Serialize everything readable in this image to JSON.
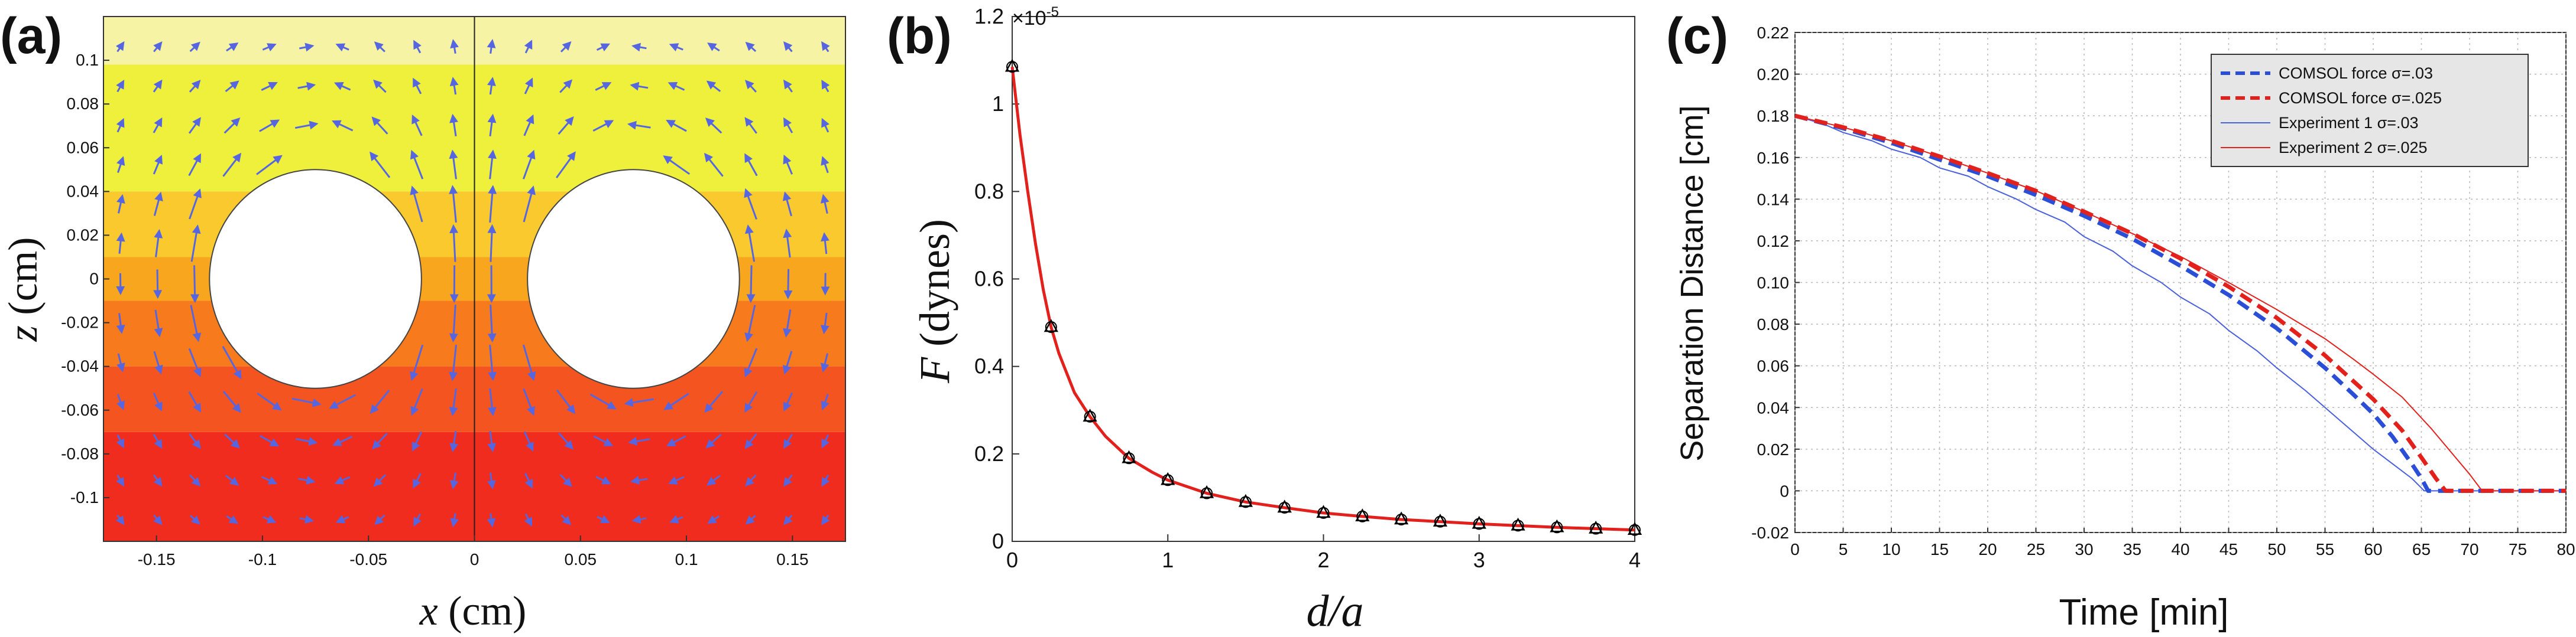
{
  "chart_data": [
    {
      "type": "heatmap",
      "panel_label": "(a)",
      "xlabel_var": "x",
      "xlabel_unit": " (cm)",
      "ylabel_var": "z",
      "ylabel_unit": " (cm)",
      "xlim": [
        -0.175,
        0.175
      ],
      "ylim": [
        -0.12,
        0.12
      ],
      "x_ticks": [
        "-0.15",
        "-0.1",
        "-0.05",
        "0",
        "0.05",
        "0.1",
        "0.15"
      ],
      "x_tick_values": [
        -0.15,
        -0.1,
        -0.05,
        0,
        0.05,
        0.1,
        0.15
      ],
      "y_ticks": [
        "0.1",
        "0.08",
        "0.06",
        "0.04",
        "0.02",
        "0",
        "-0.02",
        "-0.04",
        "-0.06",
        "-0.08",
        "-0.1"
      ],
      "y_tick_values": [
        0.1,
        0.08,
        0.06,
        0.04,
        0.02,
        0,
        -0.02,
        -0.04,
        -0.06,
        -0.08,
        -0.1
      ],
      "particles": [
        {
          "cx": -0.075,
          "cz": 0,
          "r": 0.05
        },
        {
          "cx": 0.075,
          "cz": 0,
          "r": 0.05
        }
      ],
      "color_bands": [
        {
          "z_top": 0.12,
          "z_bottom": 0.098,
          "color": "#f6f3a4"
        },
        {
          "z_top": 0.098,
          "z_bottom": 0.04,
          "color": "#eef03c"
        },
        {
          "z_top": 0.04,
          "z_bottom": 0.01,
          "color": "#f9c92e"
        },
        {
          "z_top": 0.01,
          "z_bottom": -0.01,
          "color": "#f8a61e"
        },
        {
          "z_top": -0.01,
          "z_bottom": -0.04,
          "color": "#f77a1c"
        },
        {
          "z_top": -0.04,
          "z_bottom": -0.07,
          "color": "#f45520"
        },
        {
          "z_top": -0.07,
          "z_bottom": -0.12,
          "color": "#ef2c1e"
        }
      ],
      "arrow_color": "#5566e0",
      "divider_x": 0
    },
    {
      "type": "line",
      "panel_label": "(b)",
      "xlabel": "d/a",
      "ylabel_var": "F",
      "ylabel_unit": " (dynes)",
      "scale_label": "×10",
      "scale_exp": "-5",
      "xlim": [
        0,
        4
      ],
      "ylim": [
        0,
        1.2
      ],
      "x_ticks": [
        "0",
        "1",
        "2",
        "3",
        "4"
      ],
      "x_tick_values": [
        0,
        1,
        2,
        3,
        4
      ],
      "y_ticks": [
        "0",
        "0.2",
        "0.4",
        "0.6",
        "0.8",
        "1",
        "1.2"
      ],
      "y_tick_values": [
        0,
        0.2,
        0.4,
        0.6,
        0.8,
        1.0,
        1.2
      ],
      "series": [
        {
          "marker": "triangle",
          "color": "#000000",
          "x": [
            0,
            0.25,
            0.5,
            0.75,
            1.0,
            1.25,
            1.5,
            1.75,
            2.0,
            2.25,
            2.5,
            2.75,
            3.0,
            3.25,
            3.5,
            3.75,
            4.0
          ],
          "y": [
            1.085,
            0.49,
            0.285,
            0.19,
            0.14,
            0.11,
            0.09,
            0.077,
            0.065,
            0.057,
            0.05,
            0.045,
            0.04,
            0.036,
            0.032,
            0.029,
            0.026
          ]
        },
        {
          "style": "line",
          "color": "#e3211c",
          "x": [
            0,
            0.05,
            0.1,
            0.15,
            0.2,
            0.25,
            0.3,
            0.4,
            0.5,
            0.6,
            0.75,
            0.9,
            1.0,
            1.25,
            1.5,
            1.75,
            2.0,
            2.25,
            2.5,
            2.75,
            3.0,
            3.25,
            3.5,
            3.75,
            4.0
          ],
          "y": [
            1.085,
            0.93,
            0.8,
            0.68,
            0.575,
            0.49,
            0.43,
            0.34,
            0.285,
            0.24,
            0.19,
            0.158,
            0.14,
            0.11,
            0.09,
            0.077,
            0.065,
            0.057,
            0.05,
            0.045,
            0.04,
            0.036,
            0.032,
            0.029,
            0.026
          ]
        }
      ]
    },
    {
      "type": "line",
      "panel_label": "(c)",
      "xlabel": "Time [min]",
      "ylabel": "Separation Distance [cm]",
      "xlim": [
        0,
        80
      ],
      "ylim": [
        -0.02,
        0.22
      ],
      "x_ticks": [
        "0",
        "5",
        "10",
        "15",
        "20",
        "25",
        "30",
        "35",
        "40",
        "45",
        "50",
        "55",
        "60",
        "65",
        "70",
        "75",
        "80"
      ],
      "x_tick_values": [
        0,
        5,
        10,
        15,
        20,
        25,
        30,
        35,
        40,
        45,
        50,
        55,
        60,
        65,
        70,
        75,
        80
      ],
      "y_ticks": [
        "-0.02",
        "0",
        "0.02",
        "0.04",
        "0.06",
        "0.08",
        "0.10",
        "0.12",
        "0.14",
        "0.16",
        "0.18",
        "0.20",
        "0.22"
      ],
      "y_tick_values": [
        -0.02,
        0,
        0.02,
        0.04,
        0.06,
        0.08,
        0.1,
        0.12,
        0.14,
        0.16,
        0.18,
        0.2,
        0.22
      ],
      "grid": true,
      "legend_position": "top-right",
      "series": [
        {
          "name": "COMSOL force σ=.03",
          "color": "#2a4fd6",
          "style": "dashed-thick",
          "x": [
            0,
            5,
            10,
            15,
            20,
            25,
            30,
            35,
            40,
            45,
            50,
            55,
            58,
            60,
            62,
            64,
            65,
            65.7,
            66,
            70,
            80
          ],
          "y": [
            0.18,
            0.174,
            0.167,
            0.159,
            0.151,
            0.142,
            0.132,
            0.121,
            0.108,
            0.094,
            0.078,
            0.059,
            0.046,
            0.037,
            0.026,
            0.013,
            0.006,
            0.0,
            0.0,
            0.0,
            0.0
          ]
        },
        {
          "name": "COMSOL force σ=.025",
          "color": "#e3211c",
          "style": "dashed-thick",
          "x": [
            0,
            5,
            10,
            15,
            20,
            25,
            30,
            35,
            40,
            45,
            50,
            55,
            60,
            63,
            65,
            66.5,
            67.5,
            68,
            72,
            80
          ],
          "y": [
            0.18,
            0.1745,
            0.168,
            0.1605,
            0.1525,
            0.144,
            0.134,
            0.1235,
            0.1115,
            0.098,
            0.083,
            0.065,
            0.044,
            0.029,
            0.016,
            0.006,
            0.0,
            0.0,
            0.0,
            0.0
          ]
        },
        {
          "name": "Experiment 1 σ=.03",
          "color": "#4a5fdc",
          "style": "thin",
          "x": [
            0,
            3,
            5,
            8,
            10,
            13,
            15,
            18,
            20,
            23,
            25,
            28,
            30,
            33,
            35,
            38,
            40,
            43,
            45,
            48,
            50,
            53,
            55,
            58,
            60,
            62,
            64,
            65.3,
            66,
            70,
            80
          ],
          "y": [
            0.18,
            0.176,
            0.172,
            0.168,
            0.164,
            0.16,
            0.155,
            0.151,
            0.146,
            0.14,
            0.135,
            0.129,
            0.122,
            0.115,
            0.108,
            0.1,
            0.093,
            0.085,
            0.077,
            0.067,
            0.059,
            0.048,
            0.04,
            0.028,
            0.02,
            0.013,
            0.006,
            0.0,
            0.0,
            0.0,
            0.0
          ]
        },
        {
          "name": "Experiment 2 σ=.025",
          "color": "#e3211c",
          "style": "thin",
          "x": [
            0,
            5,
            10,
            15,
            20,
            25,
            30,
            35,
            40,
            45,
            50,
            55,
            58,
            60,
            63,
            66,
            68,
            70,
            71.3,
            72.5,
            75,
            80
          ],
          "y": [
            0.18,
            0.1745,
            0.168,
            0.1605,
            0.1525,
            0.144,
            0.134,
            0.1235,
            0.1125,
            0.1,
            0.087,
            0.073,
            0.063,
            0.056,
            0.045,
            0.03,
            0.019,
            0.008,
            0.0,
            0.0,
            0.0,
            0.0
          ]
        }
      ]
    }
  ]
}
